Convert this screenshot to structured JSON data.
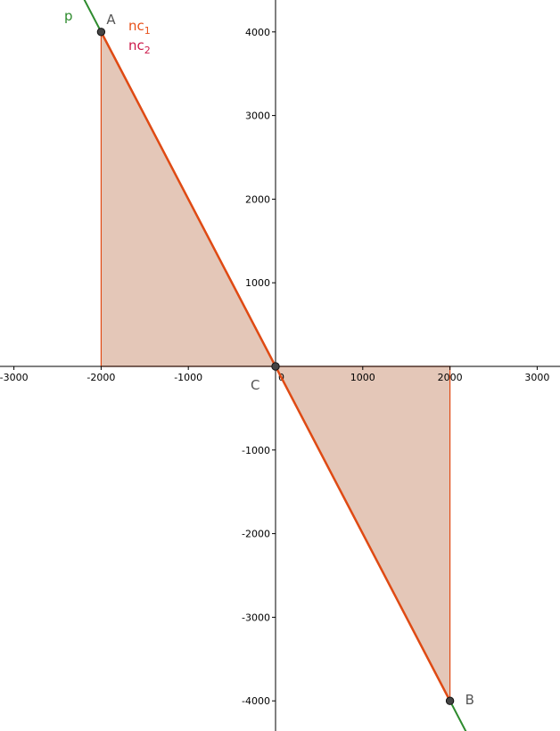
{
  "axes": {
    "x_ticks": [
      -3000,
      -2000,
      -1000,
      0,
      1000,
      2000,
      3000
    ],
    "y_ticks": [
      4000,
      3000,
      2000,
      1000,
      -1000,
      -2000,
      -3000,
      -4000
    ],
    "origin_label": "0"
  },
  "points": [
    {
      "name": "A",
      "x": -2000,
      "y": 4000
    },
    {
      "name": "B",
      "x": 2000,
      "y": -4000
    },
    {
      "name": "C",
      "x": 0,
      "y": 0
    }
  ],
  "line_p": {
    "label": "p",
    "color": "#2e8b2e"
  },
  "segments": [
    {
      "label": "nc",
      "subscript": "1",
      "color": "#e8501a"
    },
    {
      "label": "nc",
      "subscript": "2",
      "color": "#cc1a4a"
    }
  ],
  "fill_color": "#e4c7b8",
  "edge_color": "#e04a14"
}
